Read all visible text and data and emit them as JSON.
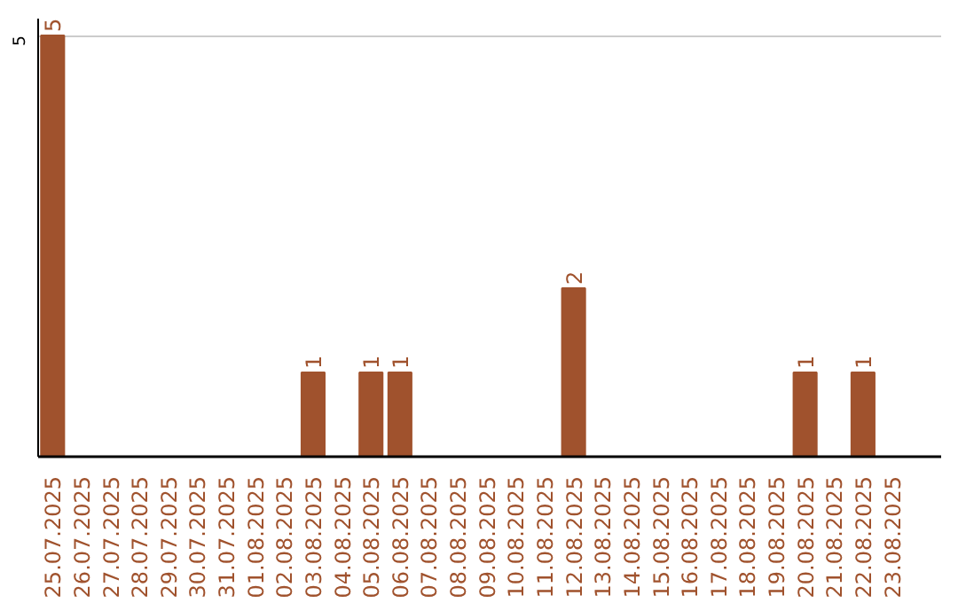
{
  "chart_data": {
    "type": "bar",
    "categories": [
      "25.07.2025",
      "26.07.2025",
      "27.07.2025",
      "28.07.2025",
      "29.07.2025",
      "30.07.2025",
      "31.07.2025",
      "01.08.2025",
      "02.08.2025",
      "03.08.2025",
      "04.08.2025",
      "05.08.2025",
      "06.08.2025",
      "07.08.2025",
      "08.08.2025",
      "09.08.2025",
      "10.08.2025",
      "11.08.2025",
      "12.08.2025",
      "13.08.2025",
      "14.08.2025",
      "15.08.2025",
      "16.08.2025",
      "17.08.2025",
      "18.08.2025",
      "19.08.2025",
      "20.08.2025",
      "21.08.2025",
      "22.08.2025",
      "23.08.2025"
    ],
    "values": [
      5,
      0,
      0,
      0,
      0,
      0,
      0,
      0,
      0,
      1,
      0,
      1,
      1,
      0,
      0,
      0,
      0,
      0,
      2,
      0,
      0,
      0,
      0,
      0,
      0,
      0,
      1,
      0,
      1,
      0
    ],
    "value_labels": [
      "5",
      null,
      null,
      null,
      null,
      null,
      null,
      null,
      null,
      "1",
      null,
      "1",
      "1",
      null,
      null,
      null,
      null,
      null,
      "2",
      null,
      null,
      null,
      null,
      null,
      null,
      null,
      "1",
      null,
      "1",
      null
    ],
    "color": "#a0522d",
    "ylim": [
      0,
      5.2
    ],
    "yticks": [
      5
    ],
    "grid": "y"
  }
}
